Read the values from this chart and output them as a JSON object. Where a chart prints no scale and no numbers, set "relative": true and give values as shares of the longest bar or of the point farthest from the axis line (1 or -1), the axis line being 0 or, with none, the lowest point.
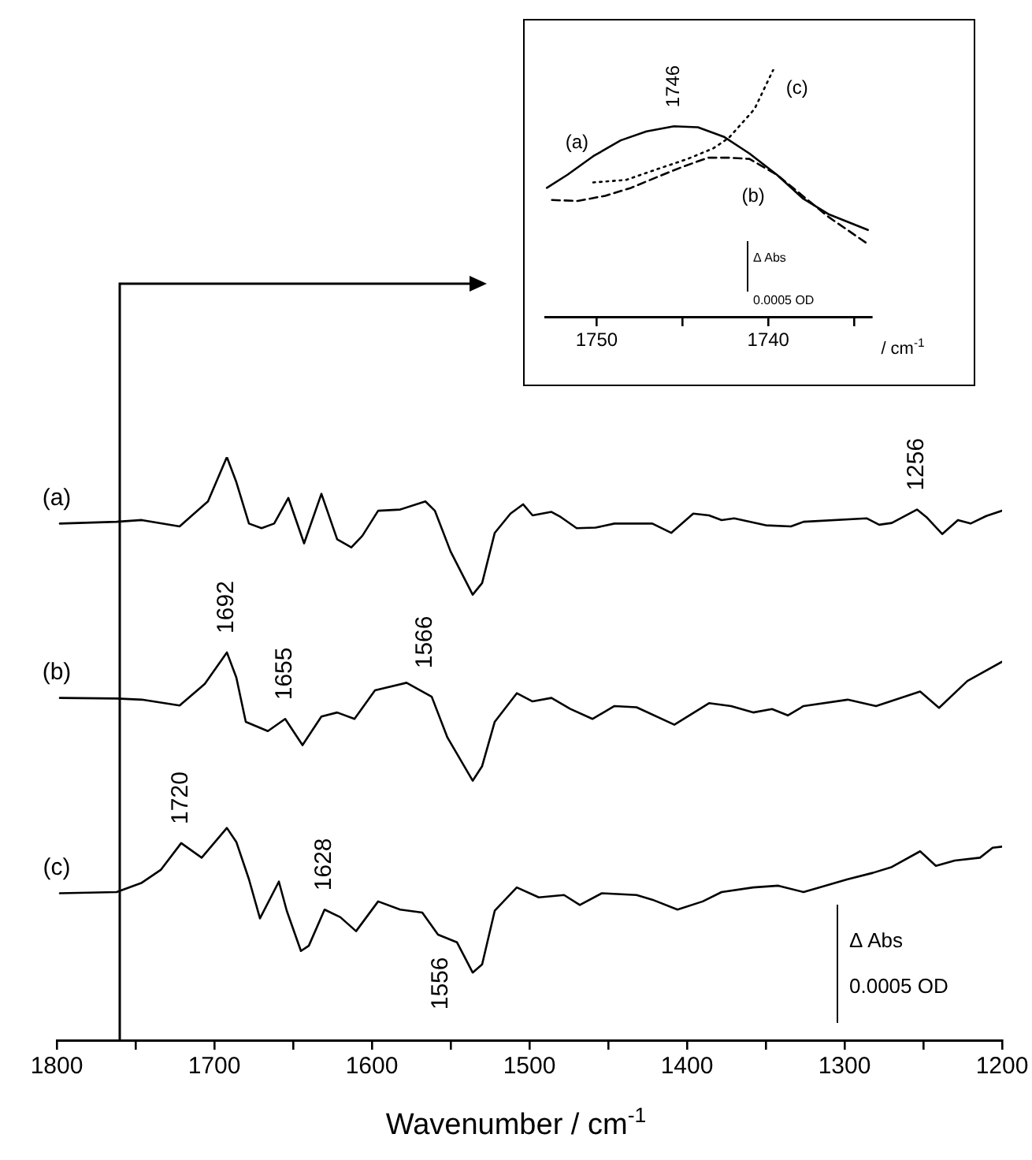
{
  "chart_data": [
    {
      "type": "line",
      "xlabel": "Wavenumber / cm$^{-1}$",
      "xlim": [
        1800,
        1200
      ],
      "xticks": [
        1800,
        {
          "value": 1750,
          "label": null
        },
        1700,
        {
          "value": 1650,
          "label": null
        },
        1600,
        {
          "value": 1550,
          "label": null
        },
        1500,
        {
          "value": 1450,
          "label": null
        },
        1400,
        {
          "value": 1350,
          "label": null
        },
        1300,
        {
          "value": 1250,
          "label": null
        },
        1200
      ],
      "relative": true,
      "marker": "none",
      "line_style": "solid",
      "series": [
        {
          "name": "(a)",
          "color": "#000000",
          "x": [
            1798,
            1762,
            1746,
            1722,
            1704,
            1692,
            1686,
            1678,
            1670,
            1662,
            1653,
            1643,
            1632,
            1622,
            1613,
            1606,
            1596,
            1582,
            1566,
            1560,
            1550,
            1536,
            1530,
            1522,
            1512,
            1504,
            1498,
            1486,
            1480,
            1470,
            1458,
            1446,
            1422,
            1410,
            1396,
            1386,
            1378,
            1370,
            1350,
            1334,
            1326,
            1286,
            1278,
            1270,
            1254,
            1248,
            1238,
            1228,
            1220,
            1210,
            1200
          ],
          "values": [
            0.886,
            0.889,
            0.892,
            0.881,
            0.924,
            1,
            0.957,
            0.886,
            0.878,
            0.886,
            0.93,
            0.852,
            0.937,
            0.859,
            0.845,
            0.865,
            0.908,
            0.91,
            0.924,
            0.908,
            0.838,
            0.764,
            0.784,
            0.87,
            0.903,
            0.919,
            0.9,
            0.906,
            0.897,
            0.878,
            0.879,
            0.886,
            0.886,
            0.87,
            0.903,
            0.9,
            0.892,
            0.895,
            0.883,
            0.881,
            0.889,
            0.895,
            0.884,
            0.887,
            0.91,
            0.897,
            0.868,
            0.892,
            0.886,
            0.899,
            0.908
          ]
        },
        {
          "name": "(b)",
          "color": "#000000",
          "x": [
            1798,
            1762,
            1746,
            1722,
            1706,
            1692,
            1686,
            1680,
            1666,
            1655,
            1644,
            1632,
            1622,
            1611,
            1598,
            1578,
            1562,
            1552,
            1536,
            1530,
            1522,
            1508,
            1498,
            1486,
            1474,
            1460,
            1446,
            1432,
            1408,
            1386,
            1372,
            1358,
            1346,
            1336,
            1326,
            1298,
            1280,
            1252,
            1240,
            1222,
            1200
          ],
          "values": [
            0.587,
            0.586,
            0.584,
            0.574,
            0.611,
            0.665,
            0.622,
            0.546,
            0.53,
            0.551,
            0.506,
            0.555,
            0.562,
            0.551,
            0.6,
            0.613,
            0.589,
            0.519,
            0.445,
            0.47,
            0.546,
            0.595,
            0.581,
            0.587,
            0.568,
            0.551,
            0.573,
            0.571,
            0.541,
            0.578,
            0.573,
            0.562,
            0.568,
            0.557,
            0.573,
            0.584,
            0.573,
            0.598,
            0.57,
            0.616,
            0.649
          ]
        },
        {
          "name": "(c)",
          "color": "#000000",
          "x": [
            1798,
            1762,
            1746,
            1734,
            1721,
            1708,
            1692,
            1686,
            1678,
            1671,
            1659,
            1654,
            1645,
            1640,
            1630,
            1620,
            1610,
            1596,
            1582,
            1568,
            1558,
            1546,
            1536,
            1530,
            1522,
            1508,
            1494,
            1478,
            1468,
            1454,
            1432,
            1422,
            1406,
            1390,
            1378,
            1358,
            1342,
            1326,
            1298,
            1282,
            1270,
            1252,
            1242,
            1230,
            1214,
            1206,
            1200
          ],
          "values": [
            0.252,
            0.254,
            0.27,
            0.292,
            0.338,
            0.313,
            0.364,
            0.34,
            0.276,
            0.209,
            0.272,
            0.222,
            0.153,
            0.162,
            0.224,
            0.211,
            0.187,
            0.238,
            0.224,
            0.219,
            0.181,
            0.168,
            0.116,
            0.13,
            0.222,
            0.262,
            0.245,
            0.249,
            0.232,
            0.252,
            0.249,
            0.241,
            0.224,
            0.238,
            0.254,
            0.262,
            0.265,
            0.254,
            0.276,
            0.287,
            0.297,
            0.324,
            0.299,
            0.308,
            0.313,
            0.33,
            0.332
          ]
        }
      ],
      "annotations": [
        {
          "text": "1692",
          "x": 1692,
          "y": 0.665
        },
        {
          "text": "1655",
          "x": 1655,
          "y": 0.551
        },
        {
          "text": "1566",
          "x": 1566,
          "y": 0.605
        },
        {
          "text": "1256",
          "x": 1254,
          "y": 0.91
        },
        {
          "text": "1720",
          "x": 1721,
          "y": 0.338
        },
        {
          "text": "1628",
          "x": 1630,
          "y": 0.224
        },
        {
          "text": "1556",
          "x": 1556,
          "y": 0.175
        },
        "Δ Abs",
        "0.0005 OD"
      ]
    },
    {
      "type": "line",
      "xlabel": "/ cm$^{-1}$",
      "xlim": [
        1753,
        1734
      ],
      "xticks": [
        1750,
        {
          "value": 1745,
          "label": null
        },
        1740,
        {
          "value": 1735,
          "label": null
        }
      ],
      "relative": true,
      "marker": "none",
      "series": [
        {
          "name": "(a)",
          "color": "#000000",
          "line_style": "solid",
          "x": [
            1752.9,
            1751.7,
            1750.2,
            1748.6,
            1747.1,
            1745.5,
            1744.1,
            1742.6,
            1741.1,
            1739.5,
            1738.0,
            1736.5,
            1734.2
          ],
          "values": [
            0.521,
            0.574,
            0.649,
            0.713,
            0.749,
            0.77,
            0.766,
            0.728,
            0.66,
            0.574,
            0.479,
            0.415,
            0.351
          ]
        },
        {
          "name": "(b)",
          "color": "#000000",
          "line_style": "dashed",
          "x": [
            1752.6,
            1751.1,
            1749.5,
            1748.0,
            1746.5,
            1745.0,
            1743.5,
            1742.3,
            1741.1,
            1739.5,
            1738.0,
            1736.5,
            1734.2
          ],
          "values": [
            0.472,
            0.468,
            0.489,
            0.521,
            0.564,
            0.606,
            0.643,
            0.643,
            0.638,
            0.574,
            0.489,
            0.404,
            0.294
          ]
        },
        {
          "name": "(c)",
          "color": "#000000",
          "line_style": "dotted",
          "x": [
            1750.2,
            1748.3,
            1746.5,
            1744.7,
            1743.2,
            1742.3,
            1740.8,
            1739.7
          ],
          "values": [
            0.543,
            0.553,
            0.596,
            0.638,
            0.681,
            0.723,
            0.84,
            1.0
          ]
        }
      ],
      "annotations": [
        {
          "text": "1746",
          "x": 1745.5,
          "y": 0.77
        },
        "Δ Abs",
        "0.0005 OD"
      ]
    }
  ]
}
